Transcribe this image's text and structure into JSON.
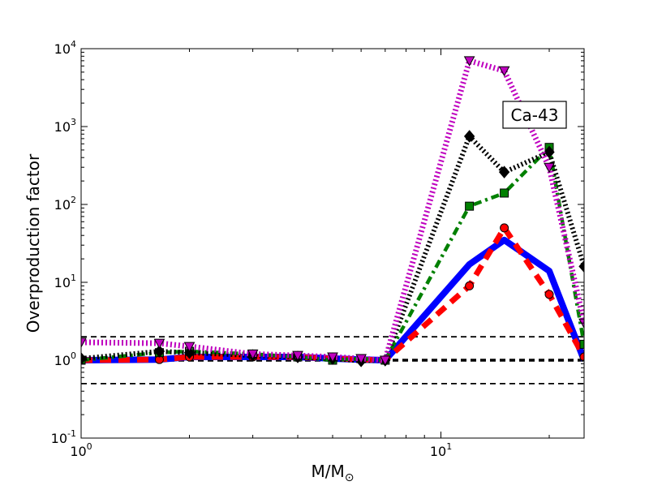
{
  "chart_data": {
    "type": "line",
    "xscale": "log",
    "yscale": "log",
    "xlim": [
      1,
      25
    ],
    "ylim": [
      0.1,
      10000
    ],
    "xlabel_main": "M/M",
    "xlabel_sub": "⊙",
    "ylabel": "Overproduction factor",
    "annotation": "Ca-43",
    "x_ticks": [
      {
        "value": 1,
        "base": "10",
        "exp": "0"
      },
      {
        "value": 10,
        "base": "10",
        "exp": "1"
      }
    ],
    "y_ticks": [
      {
        "value": 0.1,
        "base": "10",
        "exp": "-1"
      },
      {
        "value": 1,
        "base": "10",
        "exp": "0"
      },
      {
        "value": 10,
        "base": "10",
        "exp": "1"
      },
      {
        "value": 100,
        "base": "10",
        "exp": "2"
      },
      {
        "value": 1000,
        "base": "10",
        "exp": "3"
      },
      {
        "value": 10000,
        "base": "10",
        "exp": "4"
      }
    ],
    "reference_lines": [
      {
        "y": 2.0,
        "style": "dashed",
        "color": "#000000"
      },
      {
        "y": 1.0,
        "style": "dashed-bold",
        "color": "#000000"
      },
      {
        "y": 0.5,
        "style": "dashed",
        "color": "#000000"
      }
    ],
    "series": [
      {
        "color": "#0000ff",
        "dash": "solid",
        "marker": "none",
        "x": [
          1,
          1.65,
          2,
          3,
          4,
          5,
          6,
          7,
          12,
          15,
          20,
          25
        ],
        "y": [
          1.0,
          1.02,
          1.1,
          1.1,
          1.1,
          1.05,
          1.02,
          1.0,
          17,
          35,
          14,
          1.0
        ]
      },
      {
        "color": "#ff0000",
        "dash": "dashed",
        "marker": "circle",
        "x": [
          1,
          1.65,
          2,
          3,
          4,
          5,
          6,
          7,
          12,
          15,
          20,
          25
        ],
        "y": [
          1.0,
          1.02,
          1.1,
          1.1,
          1.1,
          1.05,
          1.02,
          1.0,
          9,
          50,
          7,
          1.1
        ]
      },
      {
        "color": "#008000",
        "dash": "dashdot",
        "marker": "square",
        "x": [
          1,
          1.65,
          2,
          3,
          4,
          5,
          6,
          7,
          12,
          15,
          20,
          25
        ],
        "y": [
          1.0,
          1.25,
          1.3,
          1.2,
          1.1,
          1.0,
          1.05,
          1.0,
          95,
          140,
          540,
          1.6
        ]
      },
      {
        "color": "#000000",
        "dash": "dotted",
        "marker": "diamond",
        "x": [
          1,
          1.65,
          2,
          3,
          4,
          5,
          6,
          7,
          12,
          15,
          20,
          25
        ],
        "y": [
          1.05,
          1.3,
          1.25,
          1.15,
          1.1,
          1.05,
          0.98,
          1.0,
          750,
          260,
          470,
          16
        ]
      },
      {
        "color": "#bf00bf",
        "dash": "dotted",
        "marker": "triangle-down",
        "x": [
          1,
          1.65,
          2,
          3,
          4,
          5,
          6,
          7,
          12,
          15,
          20,
          25
        ],
        "y": [
          1.7,
          1.65,
          1.5,
          1.2,
          1.15,
          1.1,
          1.05,
          1.0,
          7000,
          5200,
          300,
          3.0
        ]
      }
    ]
  }
}
